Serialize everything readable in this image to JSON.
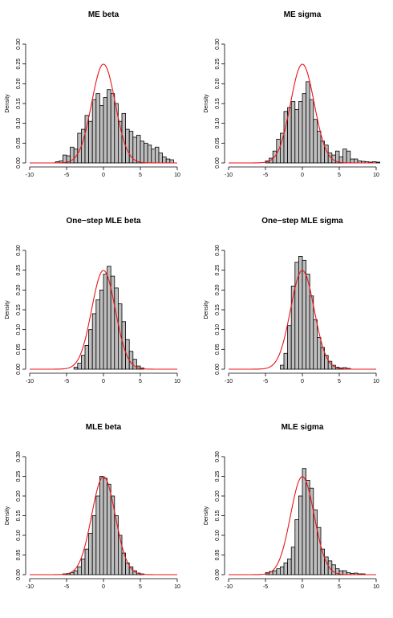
{
  "chart_data": [
    {
      "type": "bar",
      "title": "ME beta",
      "ylabel": "Density",
      "xlim": [
        -10,
        10
      ],
      "ylim": [
        0,
        0.3
      ],
      "xticks": [
        -10,
        -5,
        0,
        5,
        10
      ],
      "yticks": [
        0.0,
        0.05,
        0.1,
        0.15,
        0.2,
        0.25,
        0.3
      ],
      "bin_width": 0.5,
      "bin_start": -6.5,
      "histogram_density": [
        0.003,
        0.005,
        0.02,
        0.018,
        0.04,
        0.035,
        0.075,
        0.085,
        0.12,
        0.105,
        0.16,
        0.175,
        0.145,
        0.165,
        0.185,
        0.175,
        0.15,
        0.105,
        0.125,
        0.085,
        0.08,
        0.065,
        0.07,
        0.055,
        0.05,
        0.045,
        0.035,
        0.04,
        0.025,
        0.015,
        0.01,
        0.008
      ],
      "normal_curve": {
        "mean": 0,
        "sd": 1.6
      }
    },
    {
      "type": "bar",
      "title": "ME sigma",
      "ylabel": "Density",
      "xlim": [
        -10,
        10
      ],
      "ylim": [
        0,
        0.3
      ],
      "xticks": [
        -10,
        -5,
        0,
        5,
        10
      ],
      "yticks": [
        0.0,
        0.05,
        0.1,
        0.15,
        0.2,
        0.25,
        0.3
      ],
      "bin_width": 0.5,
      "bin_start": -5,
      "histogram_density": [
        0.005,
        0.012,
        0.03,
        0.06,
        0.075,
        0.13,
        0.14,
        0.155,
        0.135,
        0.155,
        0.175,
        0.205,
        0.16,
        0.11,
        0.08,
        0.055,
        0.045,
        0.025,
        0.02,
        0.03,
        0.015,
        0.035,
        0.03,
        0.01,
        0.01,
        0.005,
        0.004,
        0.003,
        0.002,
        0.003,
        0.002
      ],
      "normal_curve": {
        "mean": 0,
        "sd": 1.6
      }
    },
    {
      "type": "bar",
      "title": "One−step MLE beta",
      "ylabel": "Density",
      "xlim": [
        -10,
        10
      ],
      "ylim": [
        0,
        0.3
      ],
      "xticks": [
        -10,
        -5,
        0,
        5,
        10
      ],
      "yticks": [
        0.0,
        0.05,
        0.1,
        0.15,
        0.2,
        0.25,
        0.3
      ],
      "bin_width": 0.5,
      "bin_start": -4,
      "histogram_density": [
        0.005,
        0.015,
        0.035,
        0.06,
        0.1,
        0.14,
        0.175,
        0.2,
        0.24,
        0.26,
        0.235,
        0.205,
        0.165,
        0.12,
        0.075,
        0.045,
        0.025,
        0.008,
        0.003
      ],
      "normal_curve": {
        "mean": 0,
        "sd": 1.6
      }
    },
    {
      "type": "bar",
      "title": "One−step MLE sigma",
      "ylabel": "Density",
      "xlim": [
        -10,
        10
      ],
      "ylim": [
        0,
        0.3
      ],
      "xticks": [
        -10,
        -5,
        0,
        5,
        10
      ],
      "yticks": [
        0.0,
        0.05,
        0.1,
        0.15,
        0.2,
        0.25,
        0.3
      ],
      "bin_width": 0.5,
      "bin_start": -3,
      "histogram_density": [
        0.01,
        0.04,
        0.11,
        0.21,
        0.27,
        0.285,
        0.275,
        0.24,
        0.185,
        0.125,
        0.08,
        0.055,
        0.035,
        0.02,
        0.01,
        0.005,
        0.003,
        0.004,
        0.002
      ],
      "normal_curve": {
        "mean": 0,
        "sd": 1.6
      }
    },
    {
      "type": "bar",
      "title": "MLE beta",
      "ylabel": "Density",
      "xlim": [
        -10,
        10
      ],
      "ylim": [
        0,
        0.3
      ],
      "xticks": [
        -10,
        -5,
        0,
        5,
        10
      ],
      "yticks": [
        0.0,
        0.05,
        0.1,
        0.15,
        0.2,
        0.25,
        0.3
      ],
      "bin_width": 0.5,
      "bin_start": -5.5,
      "histogram_density": [
        0.002,
        0.003,
        0.005,
        0.01,
        0.02,
        0.04,
        0.065,
        0.105,
        0.15,
        0.2,
        0.25,
        0.245,
        0.23,
        0.2,
        0.15,
        0.1,
        0.055,
        0.03,
        0.02,
        0.01,
        0.004,
        0.002
      ],
      "normal_curve": {
        "mean": 0,
        "sd": 1.6
      }
    },
    {
      "type": "bar",
      "title": "MLE sigma",
      "ylabel": "Density",
      "xlim": [
        -10,
        10
      ],
      "ylim": [
        0,
        0.3
      ],
      "xticks": [
        -10,
        -5,
        0,
        5,
        10
      ],
      "yticks": [
        0.0,
        0.05,
        0.1,
        0.15,
        0.2,
        0.25,
        0.3
      ],
      "bin_width": 0.5,
      "bin_start": -5,
      "histogram_density": [
        0.005,
        0.008,
        0.01,
        0.015,
        0.02,
        0.03,
        0.04,
        0.07,
        0.14,
        0.2,
        0.27,
        0.24,
        0.22,
        0.165,
        0.12,
        0.065,
        0.045,
        0.035,
        0.025,
        0.015,
        0.01,
        0.01,
        0.005,
        0.003,
        0.004,
        0.002,
        0.002
      ],
      "normal_curve": {
        "mean": 0,
        "sd": 1.6
      }
    }
  ]
}
